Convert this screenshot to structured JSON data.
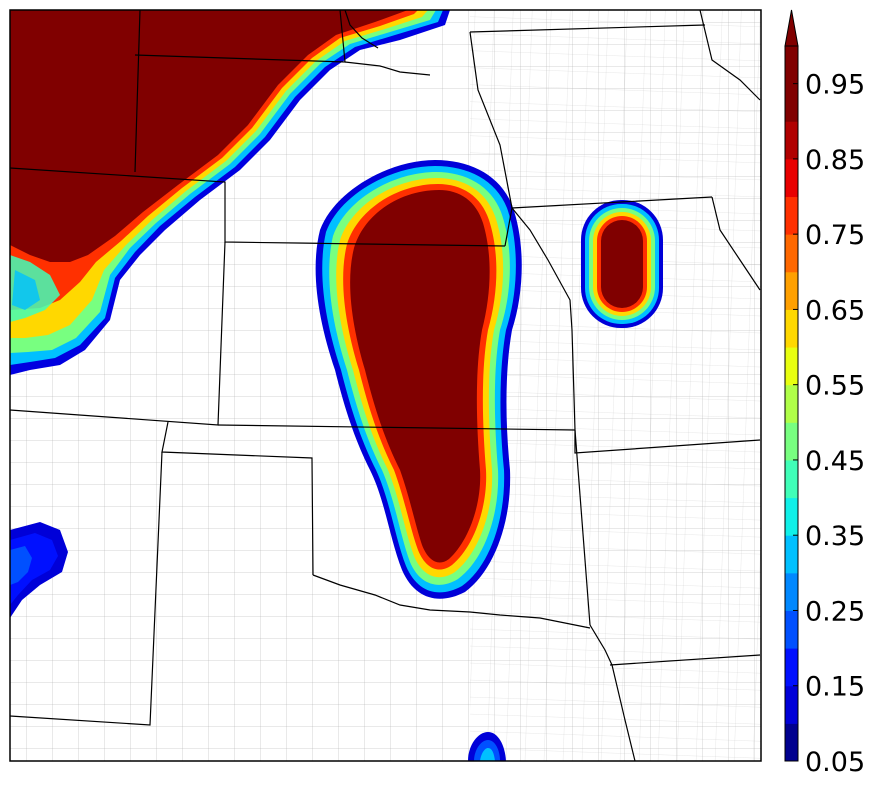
{
  "colorbar": {
    "ticks": [
      "0.05",
      "0.15",
      "0.25",
      "0.35",
      "0.45",
      "0.55",
      "0.65",
      "0.75",
      "0.85",
      "0.95"
    ],
    "levels": [
      0.05,
      0.1,
      0.15,
      0.2,
      0.25,
      0.3,
      0.35,
      0.4,
      0.45,
      0.5,
      0.55,
      0.6,
      0.65,
      0.7,
      0.75,
      0.8,
      0.85,
      0.9,
      0.95,
      1.0
    ],
    "colors": [
      "#00008f",
      "#0000d8",
      "#0010ff",
      "#0050ff",
      "#0088ff",
      "#00c0ff",
      "#10f0e8",
      "#40ffb8",
      "#78ff80",
      "#b0ff48",
      "#e8ff10",
      "#ffd800",
      "#ffa000",
      "#ff6800",
      "#ff3000",
      "#e80000",
      "#b00000",
      "#800000",
      "#800000"
    ],
    "extend": "max"
  },
  "map": {
    "fill_max_color": "#800000",
    "border_color": "#000000",
    "county_color": "#9a9a9a",
    "background": "#ffffff"
  }
}
